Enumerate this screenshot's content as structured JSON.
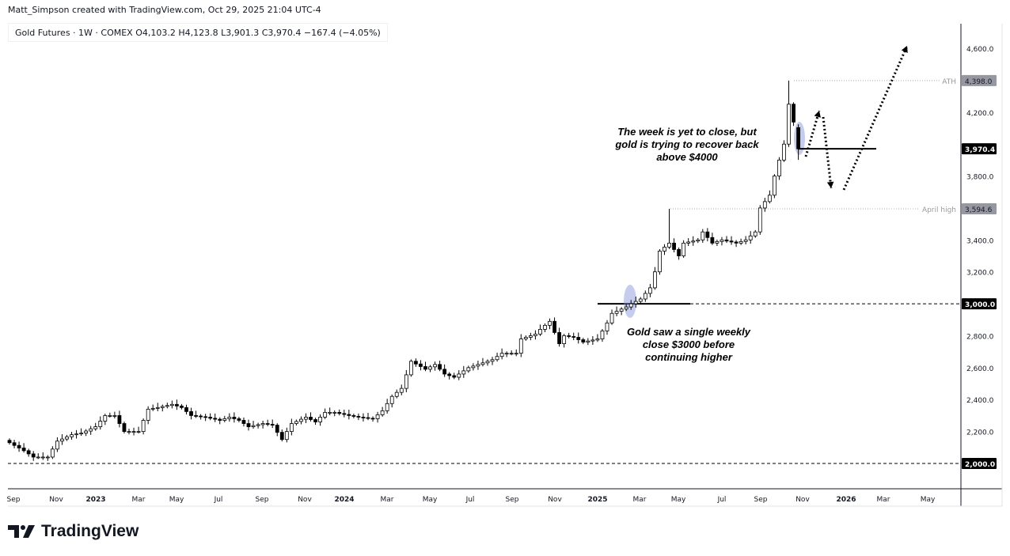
{
  "header": {
    "credit": "Matt_Simpson created with TradingView.com, Oct 29, 2025 21:04 UTC-4",
    "legend": "Gold Futures · 1W · COMEX  O4,103.2  H4,123.8  L3,901.3  C3,970.4  −167.4 (−4.05%)"
  },
  "footer": {
    "logo": "TradingView"
  },
  "annotations": {
    "note_top": "The week is yet to close, but gold is trying to recover back above $4000",
    "note_bottom": "Gold saw a single weekly close $3000 before continuing higher",
    "ath_label": "ATH",
    "april_label": "April high"
  },
  "colors": {
    "up": "#ffffff",
    "down": "#000000",
    "highlight": "#7e8fd6",
    "badge": "#9598a1"
  },
  "chart_data": {
    "type": "candlestick",
    "title": "Gold Futures · 1W · COMEX",
    "interval": "1W",
    "last_candle": {
      "open": 4103.2,
      "high": 4123.8,
      "low": 3901.3,
      "close": 3970.4,
      "change": -167.4,
      "change_pct": -4.05
    },
    "closes": [
      2130,
      2113,
      2097,
      2080,
      2060,
      2040,
      2040,
      2040,
      2040,
      2090,
      2140,
      2153,
      2167,
      2180,
      2185,
      2190,
      2203,
      2217,
      2230,
      2265,
      2300,
      2300,
      2300,
      2250,
      2200,
      2200,
      2200,
      2200,
      2270,
      2340,
      2345,
      2350,
      2357,
      2363,
      2370,
      2360,
      2350,
      2325,
      2300,
      2297,
      2293,
      2290,
      2283,
      2277,
      2270,
      2280,
      2290,
      2280,
      2270,
      2250,
      2230,
      2237,
      2243,
      2250,
      2245,
      2240,
      2195,
      2150,
      2200,
      2250,
      2263,
      2277,
      2290,
      2275,
      2260,
      2290,
      2320,
      2320,
      2320,
      2313,
      2307,
      2300,
      2295,
      2290,
      2287,
      2283,
      2280,
      2305,
      2330,
      2375,
      2420,
      2445,
      2470,
      2555,
      2640,
      2623,
      2607,
      2590,
      2605,
      2620,
      2590,
      2560,
      2550,
      2540,
      2560,
      2580,
      2600,
      2610,
      2620,
      2630,
      2640,
      2650,
      2670,
      2690,
      2690,
      2690,
      2690,
      2780,
      2790,
      2800,
      2810,
      2840,
      2865,
      2890,
      2820,
      2750,
      2800,
      2795,
      2790,
      2775,
      2760,
      2767,
      2773,
      2780,
      2830,
      2880,
      2940,
      2953,
      2967,
      2980,
      3000,
      3015,
      3030,
      3065,
      3100,
      3200,
      3330,
      3355,
      3380,
      3340,
      3300,
      3380,
      3387,
      3393,
      3400,
      3450,
      3415,
      3380,
      3390,
      3400,
      3393,
      3387,
      3380,
      3390,
      3400,
      3425,
      3450,
      3600,
      3640,
      3680,
      3800,
      3900,
      4000,
      4250,
      4137.8,
      3970.4
    ],
    "ath": 4398.0,
    "april_high": 3594.6,
    "ylim": [
      1880,
      4720
    ],
    "y_ticks": [
      "4,600.0",
      "4,200.0",
      "3,800.0",
      "3,400.0",
      "3,200.0",
      "2,800.0",
      "2,600.0",
      "2,400.0",
      "2,200.0"
    ],
    "y_tick_values": [
      4600,
      4200,
      3800,
      3400,
      3200,
      2800,
      2600,
      2400,
      2200
    ],
    "price_badges": [
      {
        "label": "4,398.0",
        "value": 4398.0
      },
      {
        "label": "3,970.4",
        "value": 3970.4
      },
      {
        "label": "3,594.6",
        "value": 3594.6
      },
      {
        "label": "3,000.0",
        "value": 3000
      },
      {
        "label": "2,000.0",
        "value": 2000
      }
    ],
    "x_ticks": [
      "Sep",
      "Nov",
      "2023",
      "Mar",
      "May",
      "Jul",
      "Sep",
      "Nov",
      "2024",
      "Mar",
      "May",
      "Jul",
      "Sep",
      "Nov",
      "2025",
      "Mar",
      "May",
      "Jul",
      "Sep",
      "Nov",
      "2026",
      "Mar",
      "May"
    ],
    "levels": [
      3000,
      2000,
      3970.4
    ]
  }
}
